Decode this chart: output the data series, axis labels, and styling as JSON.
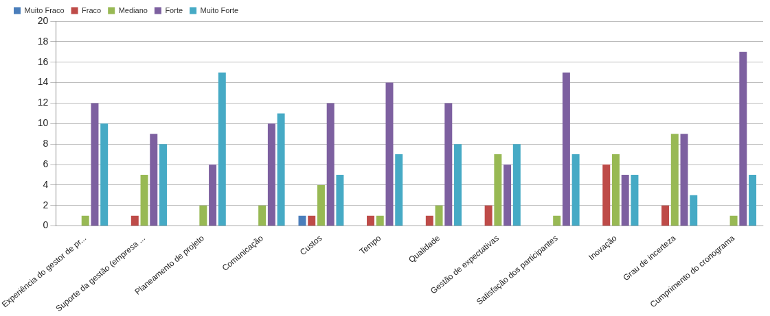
{
  "chart_data": {
    "type": "bar",
    "categories": [
      "Experiência do gestor de pr...",
      "Suporte da gestão (empresa ...",
      "Planeamento de projeto",
      "Comunicação",
      "Custos",
      "Tempo",
      "Qualidade",
      "Gestão de expectativas",
      "Satisfação dos participantes",
      "Inovação",
      "Grau de incerteza",
      "Cumprimento do cronograma"
    ],
    "series": [
      {
        "name": "Muito Fraco",
        "color": "#4a7ebb",
        "values": [
          0,
          0,
          0,
          0,
          1,
          0,
          0,
          0,
          0,
          0,
          0,
          0
        ]
      },
      {
        "name": "Fraco",
        "color": "#be4b48",
        "values": [
          0,
          1,
          0,
          0,
          1,
          1,
          1,
          2,
          0,
          6,
          2,
          0
        ]
      },
      {
        "name": "Mediano",
        "color": "#98b954",
        "values": [
          1,
          5,
          2,
          2,
          4,
          1,
          2,
          7,
          1,
          7,
          9,
          1
        ]
      },
      {
        "name": "Forte",
        "color": "#7d60a0",
        "values": [
          12,
          9,
          6,
          10,
          12,
          14,
          12,
          6,
          15,
          5,
          9,
          17
        ]
      },
      {
        "name": "Muito Forte",
        "color": "#46aac5",
        "values": [
          10,
          8,
          15,
          11,
          5,
          7,
          8,
          8,
          7,
          5,
          3,
          5
        ]
      }
    ],
    "ylim": [
      0,
      20
    ],
    "yticks": [
      0,
      2,
      4,
      6,
      8,
      10,
      12,
      14,
      16,
      18,
      20
    ],
    "grid": "y",
    "legend": "top left"
  }
}
